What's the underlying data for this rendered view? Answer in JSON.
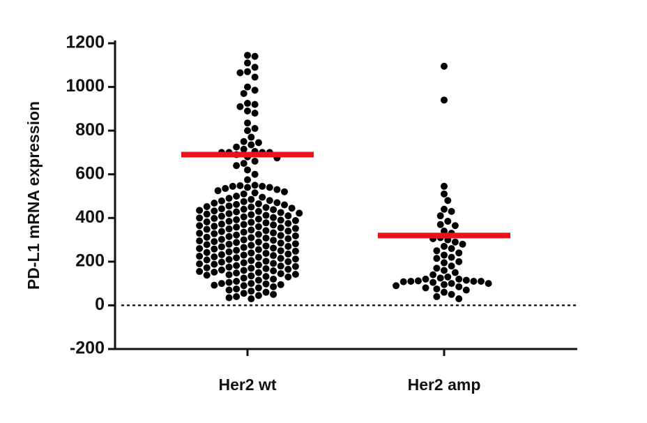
{
  "chart_data": {
    "type": "beeswarm",
    "y_label": "PD-L1 mRNA expression",
    "categories": [
      "Her2 wt",
      "Her2  amp"
    ],
    "ylim": [
      -200,
      1200
    ],
    "yticks": [
      -200,
      0,
      200,
      400,
      600,
      800,
      1000,
      1200
    ],
    "dot_color": "#000000",
    "line_color": "#e8141b",
    "zero_line": true,
    "groups": [
      {
        "line": 690,
        "values": [
          1145,
          1140,
          1110,
          1090,
          1070,
          1065,
          1045,
          1000,
          985,
          970,
          925,
          920,
          910,
          890,
          880,
          835,
          810,
          800,
          770,
          750,
          745,
          735,
          725,
          715,
          705,
          700,
          700,
          700,
          700,
          690,
          680,
          675,
          660,
          650,
          640,
          620,
          600,
          575,
          550,
          548,
          545,
          545,
          540,
          540,
          535,
          530,
          525,
          520,
          515,
          510,
          500,
          495,
          490,
          485,
          480,
          478,
          475,
          470,
          468,
          465,
          462,
          460,
          455,
          452,
          450,
          448,
          445,
          442,
          440,
          438,
          435,
          432,
          430,
          428,
          425,
          422,
          420,
          418,
          415,
          412,
          410,
          408,
          405,
          402,
          400,
          398,
          395,
          392,
          390,
          388,
          385,
          382,
          380,
          378,
          375,
          372,
          370,
          368,
          365,
          362,
          360,
          358,
          355,
          352,
          350,
          348,
          345,
          342,
          340,
          338,
          335,
          332,
          330,
          328,
          325,
          322,
          320,
          318,
          315,
          312,
          310,
          308,
          305,
          302,
          300,
          298,
          295,
          292,
          290,
          288,
          285,
          282,
          280,
          278,
          275,
          272,
          270,
          268,
          265,
          262,
          260,
          258,
          255,
          252,
          250,
          248,
          245,
          242,
          240,
          238,
          235,
          232,
          230,
          228,
          225,
          222,
          220,
          218,
          215,
          212,
          210,
          208,
          205,
          202,
          200,
          198,
          195,
          192,
          190,
          188,
          185,
          182,
          180,
          178,
          175,
          172,
          170,
          168,
          165,
          162,
          160,
          158,
          155,
          152,
          150,
          148,
          145,
          142,
          140,
          138,
          135,
          132,
          130,
          125,
          120,
          115,
          110,
          105,
          100,
          100,
          98,
          95,
          92,
          90,
          85,
          80,
          75,
          70,
          65,
          60,
          55,
          50,
          45,
          40,
          35,
          30
        ]
      },
      {
        "line": 320,
        "values": [
          1095,
          940,
          545,
          510,
          480,
          440,
          430,
          410,
          385,
          370,
          365,
          340,
          330,
          310,
          305,
          300,
          290,
          280,
          270,
          260,
          250,
          240,
          230,
          220,
          215,
          200,
          195,
          180,
          170,
          160,
          150,
          140,
          130,
          125,
          120,
          120,
          115,
          112,
          110,
          110,
          110,
          108,
          105,
          100,
          100,
          95,
          90,
          85,
          80,
          75,
          70,
          60,
          50,
          40,
          30
        ]
      }
    ]
  }
}
